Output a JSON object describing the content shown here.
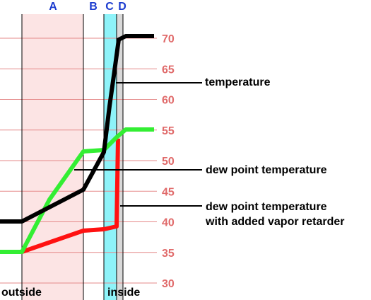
{
  "diagram": {
    "layers": [
      {
        "label": "A",
        "fill": "#fce4e4"
      },
      {
        "label": "B",
        "fill": "#ffffff"
      },
      {
        "label": "C",
        "fill": "#8ef3f9"
      },
      {
        "label": "D",
        "fill": "#d9d9d9"
      }
    ],
    "layer_label_color": "#1c3ccf",
    "gridline_color": "#e58a8a",
    "tick_label_color": "#e06a6a",
    "scale_ticks": [
      "70",
      "65",
      "60",
      "55",
      "50",
      "45",
      "40",
      "35",
      "30"
    ],
    "callouts": [
      {
        "lines": [
          "temperature"
        ]
      },
      {
        "lines": [
          "dew point temperature"
        ]
      },
      {
        "lines": [
          "dew point temperature",
          "with added vapor retarder"
        ]
      }
    ],
    "side_labels": {
      "outside": "outside",
      "inside": "inside"
    },
    "curve_colors": {
      "temperature": "#000000",
      "dew_point": "#33ee33",
      "dew_point_retarder": "#ff1111"
    }
  }
}
